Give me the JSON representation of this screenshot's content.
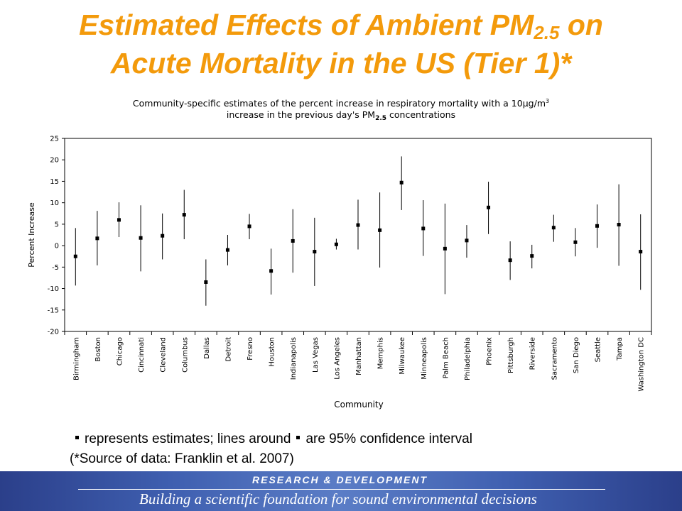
{
  "slide": {
    "title_line1_pre": "Estimated Effects of Ambient PM",
    "title_line1_sub": "2.5",
    "title_line1_post": " on",
    "title_line2": "Acute Mortality in the US (Tier 1)*"
  },
  "notes": {
    "line1_a": "represents estimates; lines around",
    "line1_b": "are 95% confidence interval",
    "line2": "(*Source of data: Franklin et al. 2007)"
  },
  "footer": {
    "top": "RESEARCH & DEVELOPMENT",
    "bottom": "Building a scientific foundation for sound environmental decisions",
    "color": "#3f5fb0"
  },
  "chart_data": {
    "type": "scatter",
    "title_line1_pre": "Community-specific estimates of the percent increase in respiratory mortality with a 10",
    "title_line1_mu": "µg/m",
    "title_line1_sup": "3",
    "title_line2_pre": "increase in the previous day's PM",
    "title_line2_sub": "2.5",
    "title_line2_post": " concentrations",
    "xlabel": "Community",
    "ylabel": "Percent Increase",
    "ylim": [
      -20,
      25
    ],
    "yticks": [
      -20,
      -15,
      -10,
      -5,
      0,
      5,
      10,
      15,
      20,
      25
    ],
    "grid": false,
    "categories": [
      "Birmingham",
      "Boston",
      "Chicago",
      "Cincinnati",
      "Cleveland",
      "Columbus",
      "Dallas",
      "Detroit",
      "Fresno",
      "Houston",
      "Indianapolis",
      "Las Vegas",
      "Los Angeles",
      "Manhattan",
      "Memphis",
      "Milwaukee",
      "Minneapolis",
      "Palm Beach",
      "Philadelphia",
      "Phoenix",
      "Pittsburgh",
      "Riverside",
      "Sacramento",
      "San Diego",
      "Seattle",
      "Tampa",
      "Washington DC"
    ],
    "estimates": [
      -2.5,
      1.7,
      6.0,
      1.8,
      2.3,
      7.2,
      -8.5,
      -1.0,
      4.5,
      -5.9,
      1.1,
      -1.4,
      0.3,
      4.8,
      3.6,
      14.7,
      4.0,
      -0.7,
      1.2,
      8.9,
      -3.4,
      -2.4,
      4.2,
      0.8,
      4.6,
      4.9,
      -1.4
    ],
    "ci_lower": [
      -9.3,
      -4.6,
      2.0,
      -6.0,
      -3.2,
      1.5,
      -14.0,
      -4.6,
      1.5,
      -11.4,
      -6.3,
      -9.4,
      -0.9,
      -0.9,
      -5.1,
      8.3,
      -2.4,
      -11.3,
      -2.8,
      2.7,
      -8.0,
      -5.3,
      0.9,
      -2.5,
      -0.5,
      -4.7,
      -10.3
    ],
    "ci_upper": [
      4.1,
      8.1,
      10.1,
      9.4,
      7.5,
      13.0,
      -3.2,
      2.5,
      7.4,
      -0.7,
      8.5,
      6.5,
      1.6,
      10.7,
      12.4,
      20.8,
      10.6,
      9.8,
      4.8,
      14.9,
      1.0,
      0.2,
      7.2,
      4.1,
      9.6,
      14.3,
      7.3
    ]
  }
}
